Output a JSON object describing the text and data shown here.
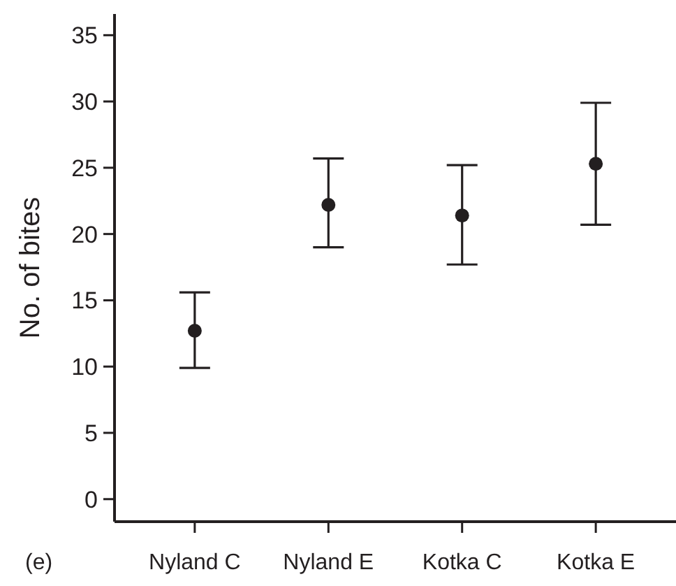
{
  "chart_data": {
    "type": "scatter",
    "ylabel": "No. of bites",
    "categories": [
      "Nyland C",
      "Nyland E",
      "Kotka C",
      "Kotka E"
    ],
    "values": [
      12.7,
      22.2,
      21.4,
      25.3
    ],
    "errors": [
      [
        9.9,
        15.6
      ],
      [
        19.0,
        25.7
      ],
      [
        17.7,
        25.2
      ],
      [
        20.7,
        29.9
      ]
    ],
    "color": "#231f20",
    "marker": "circle",
    "ylim": [
      -1.7,
      36.6
    ],
    "yticks": [
      0,
      5,
      10,
      15,
      20,
      25,
      30,
      35
    ],
    "grid": false,
    "annotations": [
      "(e)"
    ]
  }
}
